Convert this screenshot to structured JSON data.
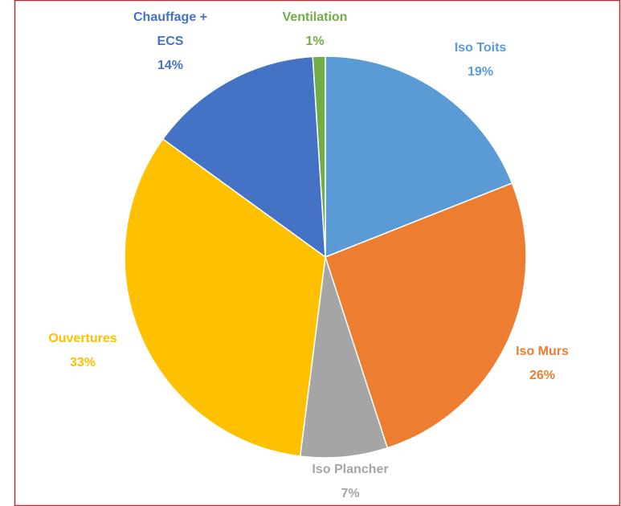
{
  "chart_data": {
    "type": "pie",
    "categories": [
      "Iso Toits",
      "Iso Murs",
      "Iso Plancher",
      "Ouvertures",
      "Chauffage + ECS",
      "Ventilation"
    ],
    "values": [
      19,
      26,
      7,
      33,
      14,
      1
    ],
    "value_labels": [
      "19%",
      "26%",
      "7%",
      "33%",
      "14%",
      "1%"
    ],
    "colors": [
      "#5b9bd5",
      "#ed7d31",
      "#a5a5a5",
      "#ffc000",
      "#4472c4",
      "#70ad47"
    ]
  }
}
